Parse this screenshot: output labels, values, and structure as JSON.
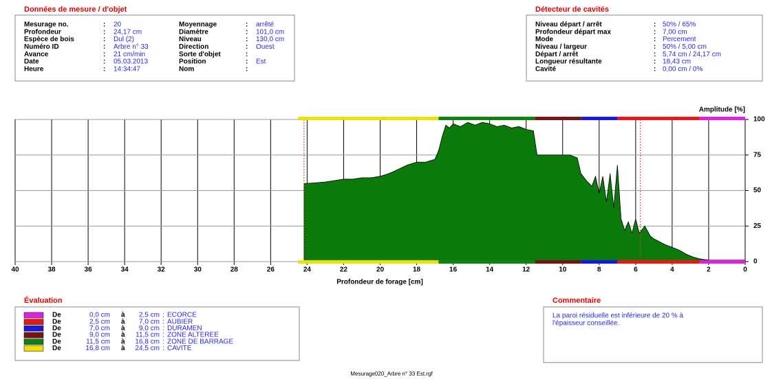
{
  "sep": ":",
  "measurement": {
    "title": "Données de mesure / d'objet",
    "left": [
      {
        "label": "Mesurage no.",
        "value": "20"
      },
      {
        "label": "Profondeur",
        "value": "24,17 cm"
      },
      {
        "label": "Espèce de bois",
        "value": "Dul (2)"
      },
      {
        "label": "Numéro ID",
        "value": "Arbre n° 33"
      },
      {
        "label": "Avance",
        "value": "21 cm/min"
      },
      {
        "label": "Date",
        "value": "05.03.2013"
      },
      {
        "label": "Heure",
        "value": "14:34:47"
      }
    ],
    "right": [
      {
        "label": "Moyennage",
        "value": "arrêté"
      },
      {
        "label": "Diamètre",
        "value": "101,0 cm"
      },
      {
        "label": "Niveau",
        "value": "130,0 cm"
      },
      {
        "label": "Direction",
        "value": "Ouest"
      },
      {
        "label": "Sorte d'objet"
      },
      {
        "label": "Position",
        "value": "Est"
      },
      {
        "label": "Nom"
      }
    ]
  },
  "detector": {
    "title": "Détecteur de cavités",
    "rows": [
      {
        "label": "Niveau départ / arrêt",
        "value": "50% / 65%"
      },
      {
        "label": "Profondeur départ max",
        "value": "7,00 cm"
      },
      {
        "label": "Mode",
        "value": "Percement"
      },
      {
        "label": "Niveau / largeur",
        "value": "50% / 5,00 cm"
      },
      {
        "label": "Départ / arrêt",
        "value": "5,74 cm / 24,17 cm"
      },
      {
        "label": "Longueur résultante",
        "value": "18,43 cm"
      },
      {
        "label": "Cavité",
        "value": "0,00 cm / 0%"
      }
    ]
  },
  "chart_data": {
    "type": "area",
    "xlabel": "Profondeur de forage [cm]",
    "ylabel": "Amplitude [%]",
    "xlim": [
      40,
      0
    ],
    "xticks": [
      40,
      38,
      36,
      34,
      32,
      30,
      28,
      26,
      24,
      22,
      20,
      18,
      16,
      14,
      12,
      10,
      8,
      6,
      4,
      2,
      0
    ],
    "ylim": [
      0,
      100
    ],
    "yticks": [
      0,
      25,
      50,
      75,
      100
    ],
    "grid": true,
    "markers": [
      24.17,
      5.74
    ],
    "marker_color": "#e03030",
    "series": [
      {
        "color": "#0a7a0a",
        "x": [
          24.17,
          24.0,
          23.5,
          23.0,
          22.5,
          22.0,
          21.5,
          21.0,
          20.5,
          20.0,
          19.5,
          19.0,
          18.5,
          18.0,
          17.5,
          17.0,
          16.8,
          16.6,
          16.4,
          16.2,
          16.0,
          15.6,
          15.2,
          14.8,
          14.4,
          14.0,
          13.6,
          13.2,
          12.8,
          12.4,
          12.0,
          11.6,
          11.4,
          11.0,
          10.5,
          10.0,
          9.6,
          9.2,
          9.0,
          8.7,
          8.4,
          8.2,
          8.0,
          7.8,
          7.6,
          7.4,
          7.2,
          7.0,
          6.8,
          6.6,
          6.4,
          6.2,
          6.0,
          5.8,
          5.5,
          5.2,
          5.0,
          4.7,
          4.4,
          4.0,
          3.6,
          3.2,
          2.8,
          2.5,
          2.0,
          1.0,
          0.0
        ],
        "values": [
          55,
          55,
          55.5,
          56,
          57,
          58,
          58,
          59,
          59,
          60,
          62,
          65,
          68,
          70,
          70,
          72,
          78,
          88,
          96,
          94,
          97,
          95,
          98,
          96,
          98,
          97,
          95,
          96,
          94,
          95,
          93,
          92,
          75,
          75,
          75,
          75,
          75,
          73,
          62,
          57,
          53,
          60,
          48,
          60,
          42,
          62,
          38,
          68,
          30,
          22,
          28,
          20,
          30,
          20,
          25,
          18,
          16,
          14,
          12,
          10,
          8,
          5,
          3,
          2,
          1,
          1,
          1
        ]
      }
    ],
    "zone_words": {
      "from": "De",
      "to": "à"
    },
    "zones_title": "Évaluation",
    "zones": [
      {
        "from": {
          "value": 0,
          "label": "0,0 cm"
        },
        "to": {
          "value": 2.5,
          "label": "2,5 cm"
        },
        "name": "ECORCE",
        "color": "#e020e0"
      },
      {
        "from": {
          "value": 2.5,
          "label": "2,5 cm"
        },
        "to": {
          "value": 7,
          "label": "7,0 cm"
        },
        "name": "AUBIER",
        "color": "#e81818"
      },
      {
        "from": {
          "value": 7,
          "label": "7,0 cm"
        },
        "to": {
          "value": 9,
          "label": "9,0 cm"
        },
        "name": "DURAMEN",
        "color": "#1818e0"
      },
      {
        "from": {
          "value": 9,
          "label": "9,0 cm"
        },
        "to": {
          "value": 11.5,
          "label": "11,5 cm"
        },
        "name": "ZONE ALTEREE",
        "color": "#7a1414"
      },
      {
        "from": {
          "value": 11.5,
          "label": "11,5 cm"
        },
        "to": {
          "value": 16.8,
          "label": "16,8 cm"
        },
        "name": "ZONE DE BARRAGE",
        "color": "#128012"
      },
      {
        "from": {
          "value": 16.8,
          "label": "16,8 cm"
        },
        "to": {
          "value": 24.5,
          "label": "24,5 cm"
        },
        "name": "CAVITE",
        "color": "#f0e000"
      }
    ]
  },
  "comment": {
    "title": "Commentaire",
    "lines": [
      "La paroi résiduelle est inférieure de 20 % à",
      "l'épaisseur conseillée."
    ]
  },
  "footer": "Mesurage020_Arbre n° 33 Est.rgf"
}
